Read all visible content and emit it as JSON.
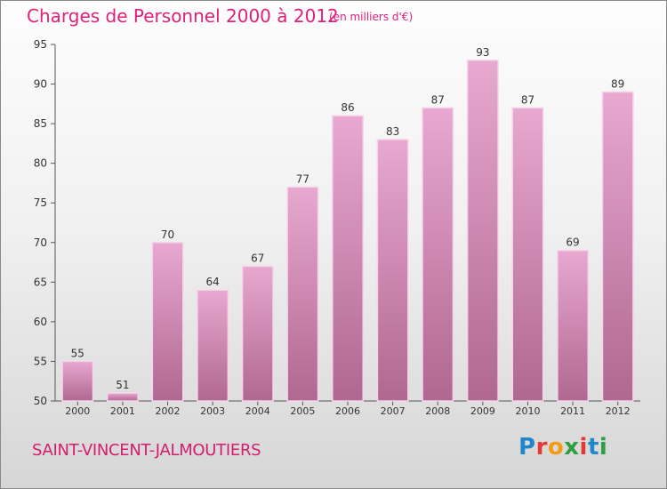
{
  "title": "Charges de Personnel 2000 à 2012",
  "unit": "(en milliers d'€)",
  "commune": "SAINT-VINCENT-JALMOUTIERS",
  "logo": {
    "text": "Proxiti",
    "letters": [
      {
        "ch": "P",
        "color": "#1e88c8"
      },
      {
        "ch": "r",
        "color": "#e53935"
      },
      {
        "ch": "o",
        "color": "#f39c12"
      },
      {
        "ch": "x",
        "color": "#2e9e44"
      },
      {
        "ch": "i",
        "color": "#e53935"
      },
      {
        "ch": "t",
        "color": "#1e88c8"
      },
      {
        "ch": "i",
        "color": "#2e9e44"
      }
    ]
  },
  "colors": {
    "bar_light": "#e8a8d0",
    "bar_dark": "#b06890",
    "title": "#e0207a"
  },
  "chart_data": {
    "type": "bar",
    "categories": [
      "2000",
      "2001",
      "2002",
      "2003",
      "2004",
      "2005",
      "2006",
      "2007",
      "2008",
      "2009",
      "2010",
      "2011",
      "2012"
    ],
    "values": [
      55,
      51,
      70,
      64,
      67,
      77,
      86,
      83,
      87,
      93,
      87,
      69,
      89
    ],
    "title": "Charges de Personnel 2000 à 2012",
    "unit": "(en milliers d'€)",
    "ylim": [
      50,
      95
    ],
    "yticks": [
      50,
      55,
      60,
      65,
      70,
      75,
      80,
      85,
      90,
      95
    ],
    "grid": false,
    "legend": "none"
  }
}
